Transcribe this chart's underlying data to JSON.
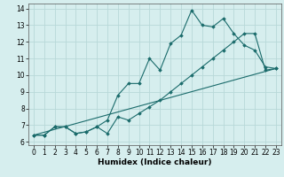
{
  "xlabel": "Humidex (Indice chaleur)",
  "ylabel": "",
  "background_color": "#d6eeee",
  "grid_color": "#b8d8d8",
  "line_color": "#1a6b6b",
  "xlim": [
    -0.5,
    23.5
  ],
  "ylim": [
    5.8,
    14.3
  ],
  "yticks": [
    6,
    7,
    8,
    9,
    10,
    11,
    12,
    13,
    14
  ],
  "xticks": [
    0,
    1,
    2,
    3,
    4,
    5,
    6,
    7,
    8,
    9,
    10,
    11,
    12,
    13,
    14,
    15,
    16,
    17,
    18,
    19,
    20,
    21,
    22,
    23
  ],
  "series1_x": [
    0,
    1,
    2,
    3,
    4,
    5,
    6,
    7,
    8,
    9,
    10,
    11,
    12,
    13,
    14,
    15,
    16,
    17,
    18,
    19,
    20,
    21,
    22,
    23
  ],
  "series1_y": [
    6.4,
    6.4,
    6.9,
    6.9,
    6.5,
    6.6,
    6.9,
    7.3,
    8.8,
    9.5,
    9.5,
    11.0,
    10.3,
    11.9,
    12.4,
    13.9,
    13.0,
    12.9,
    13.4,
    12.5,
    11.8,
    11.5,
    10.5,
    10.4
  ],
  "series2_x": [
    0,
    1,
    2,
    3,
    4,
    5,
    6,
    7,
    8,
    9,
    10,
    11,
    12,
    13,
    14,
    15,
    16,
    17,
    18,
    19,
    20,
    21,
    22,
    23
  ],
  "series2_y": [
    6.4,
    6.4,
    6.9,
    6.9,
    6.5,
    6.6,
    6.9,
    6.5,
    7.5,
    7.3,
    7.7,
    8.1,
    8.5,
    9.0,
    9.5,
    10.0,
    10.5,
    11.0,
    11.5,
    12.0,
    12.5,
    12.5,
    10.3,
    10.4
  ],
  "series3_x": [
    0,
    23
  ],
  "series3_y": [
    6.4,
    10.4
  ]
}
